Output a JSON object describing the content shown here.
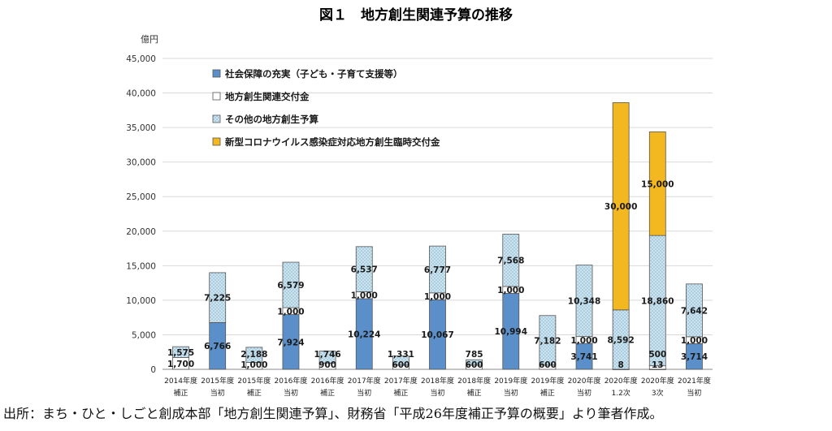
{
  "figure": {
    "title": "図１　地方創生関連予算の推移",
    "unit_label": "億円",
    "source": "出所：まち・ひと・しごと創成本部「地方創生関連予算」、財務省「平成26年度補正予算の概要」より筆者作成。"
  },
  "colors": {
    "social": "#5b8fc9",
    "grant": "#ffffff",
    "other": "#cde4ef",
    "covid": "#f3b71f",
    "edge": "#555555",
    "grid": "#d9d9d9"
  },
  "chart_data": {
    "type": "bar",
    "stacked": true,
    "ylim": [
      0,
      45000
    ],
    "yticks": [
      0,
      5000,
      10000,
      15000,
      20000,
      25000,
      30000,
      35000,
      40000,
      45000
    ],
    "ytick_labels": [
      "0",
      "5,000",
      "10,000",
      "15,000",
      "20,000",
      "25,000",
      "30,000",
      "35,000",
      "40,000",
      "45,000"
    ],
    "legend_position": "top-left",
    "categories": [
      [
        "2014年度",
        "補正"
      ],
      [
        "2015年度",
        "当初"
      ],
      [
        "2015年度",
        "補正"
      ],
      [
        "2016年度",
        "当初"
      ],
      [
        "2016年度",
        "補正"
      ],
      [
        "2017年度",
        "当初"
      ],
      [
        "2017年度",
        "補正"
      ],
      [
        "2018年度",
        "当初"
      ],
      [
        "2018年度",
        "補正"
      ],
      [
        "2019年度",
        "当初"
      ],
      [
        "2019年度",
        "補正"
      ],
      [
        "2020年度",
        "当初"
      ],
      [
        "2020年度",
        "1.2次"
      ],
      [
        "2020年度",
        "3次"
      ],
      [
        "2021年度",
        "当初"
      ]
    ],
    "series": [
      {
        "name": "社会保障の充実（子ども・子育て支援等）",
        "key": "social",
        "values": [
          0,
          6766,
          0,
          7924,
          0,
          10224,
          0,
          10067,
          0,
          10994,
          0,
          3741,
          0,
          13,
          3714
        ],
        "labels": [
          "",
          "6,766",
          "",
          "7,924",
          "",
          "10,224",
          "",
          "10,067",
          "",
          "10,994",
          "",
          "3,741",
          "",
          "13",
          "3,714"
        ]
      },
      {
        "name": "地方創生関連交付金",
        "key": "grant",
        "values": [
          1700,
          0,
          1000,
          1000,
          900,
          1000,
          600,
          1000,
          600,
          1000,
          600,
          1000,
          8,
          500,
          1000
        ],
        "labels": [
          "1,700",
          "",
          "1,000",
          "1,000",
          "900",
          "1,000",
          "600",
          "1,000",
          "600",
          "1,000",
          "600",
          "1,000",
          "8",
          "500",
          "1,000"
        ]
      },
      {
        "name": "その他の地方創生予算",
        "key": "other",
        "values": [
          1575,
          7225,
          2188,
          6579,
          1746,
          6537,
          1331,
          6777,
          785,
          7568,
          7182,
          10348,
          8592,
          18860,
          7642
        ],
        "labels": [
          "1,575",
          "7,225",
          "2,188",
          "6,579",
          "1,746",
          "6,537",
          "1,331",
          "6,777",
          "785",
          "7,568",
          "7,182",
          "10,348",
          "8,592",
          "18,860",
          "7,642"
        ]
      },
      {
        "name": "新型コロナウイルス感染症対応地方創生臨時交付金",
        "key": "covid",
        "values": [
          0,
          0,
          0,
          0,
          0,
          0,
          0,
          0,
          0,
          0,
          0,
          0,
          30000,
          15000,
          0
        ],
        "labels": [
          "",
          "",
          "",
          "",
          "",
          "",
          "",
          "",
          "",
          "",
          "",
          "",
          "30,000",
          "15,000",
          ""
        ]
      }
    ]
  }
}
